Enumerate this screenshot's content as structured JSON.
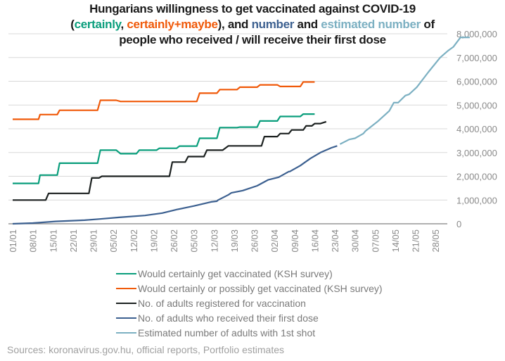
{
  "chart_data": {
    "type": "line",
    "title": {
      "line1": "Hungarians willingness to get vaccinated against COVID-19",
      "line2_parts": [
        {
          "text": "(",
          "color": "default"
        },
        {
          "text": "certainly",
          "color": "green"
        },
        {
          "text": ", ",
          "color": "default"
        },
        {
          "text": "certainly+maybe",
          "color": "orange"
        },
        {
          "text": "), and ",
          "color": "default"
        },
        {
          "text": "number",
          "color": "blue"
        },
        {
          "text": " and ",
          "color": "default"
        },
        {
          "text": "estimated number",
          "color": "lightblue"
        },
        {
          "text": " of",
          "color": "default"
        }
      ],
      "line3": "people who received / will receive their first dose"
    },
    "xlabel": "",
    "ylabel": "",
    "x_unit": "days since 01/01",
    "x_range": [
      0,
      151
    ],
    "ylim": [
      0,
      8000000
    ],
    "y_axis_side": "right",
    "yticks": [
      0,
      1000000,
      2000000,
      3000000,
      4000000,
      5000000,
      6000000,
      7000000,
      8000000
    ],
    "ytick_labels": [
      "0",
      "1,000,000",
      "2,000,000",
      "3,000,000",
      "4,000,000",
      "5,000,000",
      "6,000,000",
      "7,000,000",
      "8,000,000"
    ],
    "xticks": [
      0,
      7,
      14,
      21,
      28,
      35,
      42,
      49,
      56,
      63,
      70,
      77,
      84,
      91,
      98,
      105,
      112,
      119,
      126,
      133,
      140,
      147
    ],
    "xtick_labels": [
      "01/01",
      "08/01",
      "15/01",
      "22/01",
      "29/01",
      "05/02",
      "12/02",
      "19/02",
      "26/02",
      "05/03",
      "12/03",
      "19/03",
      "26/03",
      "02/04",
      "09/04",
      "16/04",
      "23/04",
      "30/04",
      "07/05",
      "14/05",
      "21/05",
      "28/05"
    ],
    "grid": true,
    "legend_position": "bottom",
    "series": [
      {
        "name": "Would certainly get vaccinated (KSH survey)",
        "color": "#0a9e7c",
        "step": true,
        "points": [
          [
            0,
            1700000
          ],
          [
            9,
            1700000
          ],
          [
            9.5,
            2050000
          ],
          [
            15.5,
            2050000
          ],
          [
            16.3,
            2550000
          ],
          [
            29.5,
            2550000
          ],
          [
            30.5,
            3100000
          ],
          [
            36,
            3100000
          ],
          [
            37.5,
            2950000
          ],
          [
            43,
            2950000
          ],
          [
            44,
            3100000
          ],
          [
            50,
            3100000
          ],
          [
            51,
            3180000
          ],
          [
            57,
            3180000
          ],
          [
            58,
            3270000
          ],
          [
            64,
            3270000
          ],
          [
            65,
            3600000
          ],
          [
            71,
            3600000
          ],
          [
            72,
            4050000
          ],
          [
            78,
            4050000
          ],
          [
            79,
            4070000
          ],
          [
            85,
            4070000
          ],
          [
            86,
            4330000
          ],
          [
            92,
            4330000
          ],
          [
            93,
            4520000
          ],
          [
            100,
            4520000
          ],
          [
            101,
            4620000
          ],
          [
            105,
            4620000
          ]
        ]
      },
      {
        "name": "Would certainly or possibly get vaccinated (KSH survey)",
        "color": "#f05a0a",
        "step": true,
        "points": [
          [
            0,
            4400000
          ],
          [
            9,
            4400000
          ],
          [
            9.5,
            4600000
          ],
          [
            15.5,
            4600000
          ],
          [
            16.3,
            4780000
          ],
          [
            29.5,
            4780000
          ],
          [
            30.5,
            5200000
          ],
          [
            36,
            5200000
          ],
          [
            37.5,
            5150000
          ],
          [
            64,
            5150000
          ],
          [
            65,
            5500000
          ],
          [
            71,
            5500000
          ],
          [
            72,
            5650000
          ],
          [
            78,
            5650000
          ],
          [
            79,
            5750000
          ],
          [
            85,
            5750000
          ],
          [
            86,
            5850000
          ],
          [
            92,
            5850000
          ],
          [
            93,
            5780000
          ],
          [
            100,
            5780000
          ],
          [
            101,
            5970000
          ],
          [
            105,
            5970000
          ]
        ]
      },
      {
        "name": "No. of adults registered for vaccination",
        "color": "#1c2120",
        "step": true,
        "points": [
          [
            0,
            1000000
          ],
          [
            11.5,
            1000000
          ],
          [
            12.5,
            1280000
          ],
          [
            26.5,
            1280000
          ],
          [
            27.5,
            1930000
          ],
          [
            30,
            1930000
          ],
          [
            31,
            2000000
          ],
          [
            54.5,
            2000000
          ],
          [
            55.5,
            2600000
          ],
          [
            60,
            2600000
          ],
          [
            61,
            2830000
          ],
          [
            66.5,
            2830000
          ],
          [
            67.5,
            3100000
          ],
          [
            73,
            3100000
          ],
          [
            75,
            3280000
          ],
          [
            86.5,
            3280000
          ],
          [
            87.5,
            3670000
          ],
          [
            92,
            3670000
          ],
          [
            93,
            3800000
          ],
          [
            96,
            3800000
          ],
          [
            97,
            3950000
          ],
          [
            101,
            3950000
          ],
          [
            102,
            4120000
          ],
          [
            104,
            4120000
          ],
          [
            105,
            4220000
          ],
          [
            107,
            4220000
          ],
          [
            109,
            4300000
          ]
        ]
      },
      {
        "name": "No. of adults who received their first dose",
        "color": "#3c6090",
        "step": false,
        "points": [
          [
            0,
            0
          ],
          [
            7,
            30000
          ],
          [
            15,
            100000
          ],
          [
            25,
            150000
          ],
          [
            30,
            200000
          ],
          [
            37,
            270000
          ],
          [
            46,
            350000
          ],
          [
            52,
            450000
          ],
          [
            57,
            600000
          ],
          [
            63,
            750000
          ],
          [
            69,
            920000
          ],
          [
            71,
            950000
          ],
          [
            71.4,
            1000000
          ],
          [
            75,
            1220000
          ],
          [
            76,
            1300000
          ],
          [
            80,
            1400000
          ],
          [
            85,
            1600000
          ],
          [
            88.8,
            1850000
          ],
          [
            92.5,
            1960000
          ],
          [
            96,
            2200000
          ],
          [
            96.3,
            2200000
          ],
          [
            100,
            2450000
          ],
          [
            103.5,
            2750000
          ],
          [
            107,
            3000000
          ],
          [
            110.8,
            3200000
          ],
          [
            112.8,
            3280000
          ]
        ]
      },
      {
        "name": "Estimated number of adults with 1st shot",
        "color": "#7cb0c2",
        "step": false,
        "points": [
          [
            113.8,
            3350000
          ],
          [
            117,
            3550000
          ],
          [
            119,
            3600000
          ],
          [
            121.9,
            3800000
          ],
          [
            122.6,
            3900000
          ],
          [
            126.8,
            4300000
          ],
          [
            130.9,
            4750000
          ],
          [
            134,
            5100000
          ],
          [
            137.8,
            5450000
          ],
          [
            132.5,
            5100000
          ],
          [
            136.5,
            5400000
          ],
          [
            140.5,
            5750000
          ],
          [
            144.6,
            6400000
          ],
          [
            148.6,
            7000000
          ],
          [
            151.5,
            7300000
          ],
          [
            153.2,
            7450000
          ],
          [
            155.7,
            7850000
          ],
          [
            158.9,
            7850000
          ]
        ]
      }
    ]
  },
  "legend": {
    "items": [
      {
        "label": "Would certainly get vaccinated (KSH survey)",
        "color": "#0a9e7c"
      },
      {
        "label": "Would certainly or possibly get vaccinated (KSH survey)",
        "color": "#f05a0a"
      },
      {
        "label": "No. of adults registered for vaccination",
        "color": "#1c2120"
      },
      {
        "label": "No. of adults who received their first dose",
        "color": "#3c6090"
      },
      {
        "label": "Estimated number of adults with 1st shot",
        "color": "#7cb0c2"
      }
    ]
  },
  "source": "Sources: koronavirus.gov.hu, official reports, Portfolio estimates"
}
